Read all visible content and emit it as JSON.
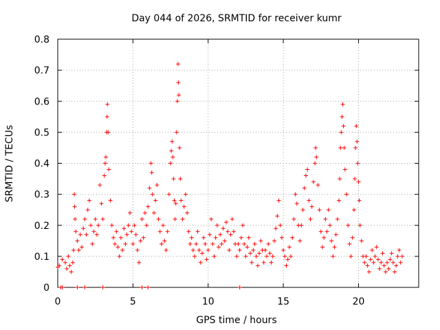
{
  "chart_data": {
    "type": "scatter",
    "title": "Day 044 of 2026, SRMTID for receiver kumr",
    "xlabel": "GPS time / hours",
    "ylabel": "SRMTID / TECUs",
    "xlim": [
      0,
      24
    ],
    "ylim": [
      0,
      0.8
    ],
    "x_ticks": [
      0,
      5,
      10,
      15,
      20
    ],
    "y_ticks": [
      0,
      0.1,
      0.2,
      0.3,
      0.4,
      0.5,
      0.6,
      0.7,
      0.8
    ],
    "grid": true,
    "marker": "+",
    "color": "#ff0000",
    "series": [
      {
        "name": "SRMTID",
        "points": [
          [
            0.0,
            0.065
          ],
          [
            0.1,
            0.07
          ],
          [
            0.3,
            0.09
          ],
          [
            0.5,
            0.08
          ],
          [
            0.6,
            0.06
          ],
          [
            0.7,
            0.1
          ],
          [
            0.8,
            0.07
          ],
          [
            0.9,
            0.05
          ],
          [
            1.0,
            0.08
          ],
          [
            1.05,
            0.12
          ],
          [
            1.1,
            0.3
          ],
          [
            1.12,
            0.26
          ],
          [
            1.15,
            0.22
          ],
          [
            1.2,
            0.18
          ],
          [
            1.3,
            0.15
          ],
          [
            1.4,
            0.12
          ],
          [
            1.5,
            0.17
          ],
          [
            1.6,
            0.13
          ],
          [
            1.7,
            0.19
          ],
          [
            1.8,
            0.22
          ],
          [
            1.9,
            0.17
          ],
          [
            2.0,
            0.25
          ],
          [
            2.1,
            0.28
          ],
          [
            2.2,
            0.2
          ],
          [
            2.3,
            0.14
          ],
          [
            2.4,
            0.18
          ],
          [
            2.5,
            0.22
          ],
          [
            2.6,
            0.17
          ],
          [
            2.7,
            0.2
          ],
          [
            2.8,
            0.33
          ],
          [
            2.9,
            0.27
          ],
          [
            3.0,
            0.22
          ],
          [
            3.1,
            0.36
          ],
          [
            3.15,
            0.4
          ],
          [
            3.2,
            0.42
          ],
          [
            3.25,
            0.5
          ],
          [
            3.28,
            0.55
          ],
          [
            3.3,
            0.59
          ],
          [
            3.35,
            0.5
          ],
          [
            3.4,
            0.38
          ],
          [
            3.5,
            0.28
          ],
          [
            3.6,
            0.2
          ],
          [
            3.7,
            0.16
          ],
          [
            3.8,
            0.14
          ],
          [
            3.9,
            0.18
          ],
          [
            4.0,
            0.13
          ],
          [
            4.1,
            0.1
          ],
          [
            4.2,
            0.16
          ],
          [
            4.3,
            0.12
          ],
          [
            4.4,
            0.19
          ],
          [
            4.5,
            0.14
          ],
          [
            4.6,
            0.17
          ],
          [
            4.7,
            0.2
          ],
          [
            4.8,
            0.24
          ],
          [
            4.9,
            0.18
          ],
          [
            5.0,
            0.14
          ],
          [
            5.1,
            0.2
          ],
          [
            5.2,
            0.17
          ],
          [
            5.3,
            0.12
          ],
          [
            5.4,
            0.08
          ],
          [
            5.5,
            0.15
          ],
          [
            5.6,
            0.22
          ],
          [
            5.7,
            0.16
          ],
          [
            5.8,
            0.24
          ],
          [
            5.9,
            0.2
          ],
          [
            6.0,
            0.26
          ],
          [
            6.1,
            0.32
          ],
          [
            6.2,
            0.4
          ],
          [
            6.25,
            0.37
          ],
          [
            6.3,
            0.3
          ],
          [
            6.4,
            0.24
          ],
          [
            6.5,
            0.28
          ],
          [
            6.6,
            0.33
          ],
          [
            6.7,
            0.22
          ],
          [
            6.8,
            0.18
          ],
          [
            6.9,
            0.14
          ],
          [
            7.0,
            0.2
          ],
          [
            7.1,
            0.15
          ],
          [
            7.2,
            0.12
          ],
          [
            7.3,
            0.18
          ],
          [
            7.4,
            0.3
          ],
          [
            7.5,
            0.4
          ],
          [
            7.55,
            0.44
          ],
          [
            7.6,
            0.47
          ],
          [
            7.65,
            0.42
          ],
          [
            7.7,
            0.35
          ],
          [
            7.75,
            0.28
          ],
          [
            7.8,
            0.22
          ],
          [
            7.85,
            0.27
          ],
          [
            7.9,
            0.5
          ],
          [
            7.95,
            0.6
          ],
          [
            8.0,
            0.72
          ],
          [
            8.02,
            0.66
          ],
          [
            8.05,
            0.62
          ],
          [
            8.1,
            0.45
          ],
          [
            8.15,
            0.35
          ],
          [
            8.2,
            0.28
          ],
          [
            8.3,
            0.22
          ],
          [
            8.4,
            0.26
          ],
          [
            8.5,
            0.3
          ],
          [
            8.6,
            0.24
          ],
          [
            8.7,
            0.18
          ],
          [
            8.8,
            0.14
          ],
          [
            8.9,
            0.16
          ],
          [
            9.0,
            0.12
          ],
          [
            9.1,
            0.1
          ],
          [
            9.2,
            0.14
          ],
          [
            9.3,
            0.18
          ],
          [
            9.4,
            0.12
          ],
          [
            9.5,
            0.08
          ],
          [
            9.6,
            0.11
          ],
          [
            9.7,
            0.16
          ],
          [
            9.8,
            0.14
          ],
          [
            9.9,
            0.09
          ],
          [
            10.0,
            0.12
          ],
          [
            10.1,
            0.17
          ],
          [
            10.2,
            0.22
          ],
          [
            10.3,
            0.14
          ],
          [
            10.4,
            0.1
          ],
          [
            10.5,
            0.16
          ],
          [
            10.6,
            0.2
          ],
          [
            10.7,
            0.13
          ],
          [
            10.8,
            0.17
          ],
          [
            10.9,
            0.14
          ],
          [
            11.0,
            0.19
          ],
          [
            11.1,
            0.15
          ],
          [
            11.2,
            0.21
          ],
          [
            11.3,
            0.18
          ],
          [
            11.4,
            0.12
          ],
          [
            11.5,
            0.17
          ],
          [
            11.6,
            0.22
          ],
          [
            11.7,
            0.18
          ],
          [
            11.8,
            0.14
          ],
          [
            11.9,
            0.1
          ],
          [
            12.0,
            0.14
          ],
          [
            12.1,
            0.12
          ],
          [
            12.2,
            0.16
          ],
          [
            12.3,
            0.2
          ],
          [
            12.4,
            0.14
          ],
          [
            12.5,
            0.1
          ],
          [
            12.6,
            0.13
          ],
          [
            12.7,
            0.16
          ],
          [
            12.8,
            0.11
          ],
          [
            12.9,
            0.08
          ],
          [
            13.0,
            0.12
          ],
          [
            13.1,
            0.14
          ],
          [
            13.2,
            0.1
          ],
          [
            13.3,
            0.07
          ],
          [
            13.4,
            0.11
          ],
          [
            13.5,
            0.15
          ],
          [
            13.6,
            0.12
          ],
          [
            13.7,
            0.08
          ],
          [
            13.8,
            0.12
          ],
          [
            13.9,
            0.1
          ],
          [
            14.0,
            0.14
          ],
          [
            14.1,
            0.11
          ],
          [
            14.2,
            0.08
          ],
          [
            14.3,
            0.1
          ],
          [
            14.4,
            0.15
          ],
          [
            14.5,
            0.19
          ],
          [
            14.6,
            0.23
          ],
          [
            14.7,
            0.28
          ],
          [
            14.8,
            0.2
          ],
          [
            14.9,
            0.16
          ],
          [
            15.0,
            0.12
          ],
          [
            15.1,
            0.1
          ],
          [
            15.2,
            0.07
          ],
          [
            15.3,
            0.09
          ],
          [
            15.4,
            0.13
          ],
          [
            15.5,
            0.1
          ],
          [
            15.6,
            0.16
          ],
          [
            15.7,
            0.22
          ],
          [
            15.8,
            0.3
          ],
          [
            15.9,
            0.27
          ],
          [
            16.0,
            0.2
          ],
          [
            16.1,
            0.15
          ],
          [
            16.2,
            0.2
          ],
          [
            16.3,
            0.25
          ],
          [
            16.4,
            0.32
          ],
          [
            16.5,
            0.36
          ],
          [
            16.6,
            0.38
          ],
          [
            16.7,
            0.28
          ],
          [
            16.8,
            0.22
          ],
          [
            16.9,
            0.26
          ],
          [
            17.0,
            0.34
          ],
          [
            17.1,
            0.4
          ],
          [
            17.15,
            0.45
          ],
          [
            17.2,
            0.42
          ],
          [
            17.3,
            0.33
          ],
          [
            17.4,
            0.25
          ],
          [
            17.5,
            0.18
          ],
          [
            17.6,
            0.13
          ],
          [
            17.7,
            0.16
          ],
          [
            17.8,
            0.22
          ],
          [
            17.9,
            0.18
          ],
          [
            18.0,
            0.25
          ],
          [
            18.1,
            0.2
          ],
          [
            18.2,
            0.15
          ],
          [
            18.3,
            0.1
          ],
          [
            18.4,
            0.13
          ],
          [
            18.5,
            0.17
          ],
          [
            18.6,
            0.22
          ],
          [
            18.7,
            0.28
          ],
          [
            18.75,
            0.35
          ],
          [
            18.8,
            0.45
          ],
          [
            18.85,
            0.5
          ],
          [
            18.9,
            0.55
          ],
          [
            18.95,
            0.59
          ],
          [
            19.0,
            0.52
          ],
          [
            19.05,
            0.45
          ],
          [
            19.1,
            0.38
          ],
          [
            19.2,
            0.3
          ],
          [
            19.3,
            0.2
          ],
          [
            19.4,
            0.14
          ],
          [
            19.5,
            0.1
          ],
          [
            19.6,
            0.16
          ],
          [
            19.7,
            0.25
          ],
          [
            19.75,
            0.35
          ],
          [
            19.8,
            0.45
          ],
          [
            19.85,
            0.52
          ],
          [
            19.9,
            0.47
          ],
          [
            19.95,
            0.4
          ],
          [
            20.0,
            0.34
          ],
          [
            20.05,
            0.28
          ],
          [
            20.1,
            0.2
          ],
          [
            20.2,
            0.15
          ],
          [
            20.3,
            0.1
          ],
          [
            20.4,
            0.08
          ],
          [
            20.5,
            0.1
          ],
          [
            20.6,
            0.07
          ],
          [
            20.7,
            0.05
          ],
          [
            20.8,
            0.09
          ],
          [
            20.9,
            0.12
          ],
          [
            21.0,
            0.08
          ],
          [
            21.1,
            0.1
          ],
          [
            21.2,
            0.13
          ],
          [
            21.3,
            0.09
          ],
          [
            21.4,
            0.06
          ],
          [
            21.5,
            0.08
          ],
          [
            21.6,
            0.11
          ],
          [
            21.7,
            0.07
          ],
          [
            21.8,
            0.05
          ],
          [
            21.9,
            0.08
          ],
          [
            22.0,
            0.06
          ],
          [
            22.1,
            0.09
          ],
          [
            22.2,
            0.11
          ],
          [
            22.3,
            0.08
          ],
          [
            22.4,
            0.05
          ],
          [
            22.5,
            0.07
          ],
          [
            22.6,
            0.1
          ],
          [
            22.7,
            0.12
          ],
          [
            22.8,
            0.08
          ],
          [
            22.9,
            0.1
          ],
          [
            0.2,
            0.0
          ],
          [
            0.3,
            0.0
          ],
          [
            1.3,
            0.0
          ],
          [
            1.8,
            0.0
          ],
          [
            3.0,
            0.0
          ],
          [
            5.6,
            0.0
          ],
          [
            6.0,
            0.0
          ],
          [
            12.1,
            0.0
          ]
        ]
      }
    ]
  }
}
